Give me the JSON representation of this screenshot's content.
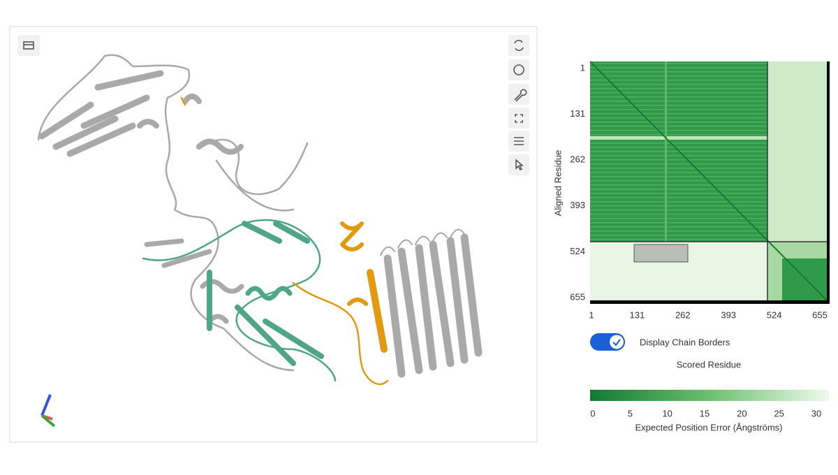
{
  "pae_plot": {
    "y_label": "Aligned Residue",
    "x_label": "Scored Residue",
    "yticks": [
      1,
      131,
      262,
      393,
      524,
      655
    ],
    "xticks": [
      1,
      131,
      262,
      393,
      524,
      655
    ],
    "toggle_label": "Display Chain Borders",
    "colorbar": {
      "ticks": [
        0,
        5,
        10,
        15,
        20,
        25,
        30
      ],
      "label": "Expected Position Error (Ångströms)"
    }
  }
}
